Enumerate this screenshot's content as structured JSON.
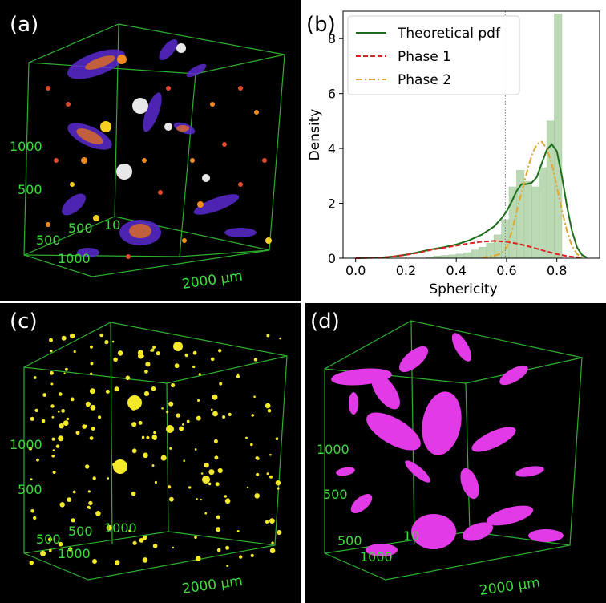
{
  "panels": {
    "a": {
      "label": "(a)",
      "tick_1000": "1000",
      "tick_500": "500",
      "tick_500b": "500",
      "tick_1000b": "1000",
      "tick_10": "10",
      "scale": "2000 µm"
    },
    "b": {
      "label": "(b)"
    },
    "c": {
      "label": "(c)",
      "tick_1000": "1000",
      "tick_500": "500",
      "tick_500b": "500",
      "tick_1000b": "1000",
      "tick_1000c": "1000",
      "tick_500c": "500",
      "scale": "2000 µm"
    },
    "d": {
      "label": "(d)",
      "tick_1000": "1000",
      "tick_500": "500",
      "tick_500b": "500",
      "tick_1000b": "1000",
      "tick_10": "10",
      "scale": "2000 µm"
    }
  },
  "colors": {
    "box_green": "#2fae2f",
    "axis_text_green": "#3ddc3d",
    "pdf_green": "#1a6e1a",
    "phase1_red": "#dd2222",
    "phase2_gold": "#e0a82e",
    "hist_fill": "#b5d5ad",
    "magenta": "#e23ae6",
    "yellow": "#f4ea2a"
  },
  "chart_data": {
    "type": "bar",
    "xlabel": "Sphericity",
    "ylabel": "Density",
    "xlim": [
      -0.05,
      0.97
    ],
    "ylim": [
      0,
      9
    ],
    "xticks": [
      "0.0",
      "0.2",
      "0.4",
      "0.6",
      "0.8"
    ],
    "xtick_values": [
      0.0,
      0.2,
      0.4,
      0.6,
      0.8
    ],
    "yticks": [
      "0",
      "2",
      "4",
      "6",
      "8"
    ],
    "ytick_values": [
      0,
      2,
      4,
      6,
      8
    ],
    "vline_x": 0.595,
    "histogram": {
      "bin_width": 0.03,
      "bin_starts": [
        0.28,
        0.31,
        0.34,
        0.37,
        0.4,
        0.43,
        0.46,
        0.49,
        0.52,
        0.55,
        0.58,
        0.61,
        0.64,
        0.67,
        0.7,
        0.73,
        0.76,
        0.79
      ],
      "values": [
        0.05,
        0.08,
        0.1,
        0.12,
        0.15,
        0.2,
        0.3,
        0.4,
        0.55,
        0.85,
        1.4,
        2.6,
        3.2,
        2.8,
        2.6,
        3.3,
        5.0,
        8.9
      ]
    },
    "series": [
      {
        "name": "Theoretical pdf",
        "style": "solid",
        "x": [
          0.0,
          0.1,
          0.15,
          0.2,
          0.25,
          0.3,
          0.35,
          0.4,
          0.45,
          0.5,
          0.55,
          0.58,
          0.6,
          0.62,
          0.64,
          0.66,
          0.68,
          0.7,
          0.72,
          0.74,
          0.76,
          0.78,
          0.8,
          0.82,
          0.84,
          0.86,
          0.88,
          0.9,
          0.92
        ],
        "y": [
          0.0,
          0.02,
          0.06,
          0.13,
          0.22,
          0.32,
          0.4,
          0.5,
          0.65,
          0.85,
          1.15,
          1.45,
          1.7,
          2.05,
          2.45,
          2.7,
          2.7,
          2.75,
          2.95,
          3.45,
          3.95,
          4.15,
          3.9,
          3.0,
          1.9,
          1.0,
          0.4,
          0.12,
          0.02
        ]
      },
      {
        "name": "Phase 1",
        "style": "dashed",
        "x": [
          0.0,
          0.1,
          0.15,
          0.2,
          0.25,
          0.3,
          0.35,
          0.4,
          0.45,
          0.5,
          0.55,
          0.6,
          0.65,
          0.7,
          0.75,
          0.8,
          0.85,
          0.9
        ],
        "y": [
          0.0,
          0.02,
          0.06,
          0.12,
          0.2,
          0.3,
          0.38,
          0.46,
          0.54,
          0.6,
          0.63,
          0.6,
          0.52,
          0.4,
          0.27,
          0.15,
          0.06,
          0.02
        ]
      },
      {
        "name": "Phase 2",
        "style": "dashdot",
        "x": [
          0.5,
          0.55,
          0.58,
          0.6,
          0.62,
          0.64,
          0.66,
          0.68,
          0.7,
          0.72,
          0.74,
          0.76,
          0.78,
          0.8,
          0.82,
          0.84,
          0.86,
          0.88,
          0.9
        ],
        "y": [
          0.02,
          0.08,
          0.18,
          0.38,
          0.95,
          1.7,
          2.4,
          3.1,
          3.75,
          4.15,
          4.25,
          4.0,
          3.45,
          2.6,
          1.75,
          1.0,
          0.45,
          0.15,
          0.04
        ]
      }
    ]
  }
}
